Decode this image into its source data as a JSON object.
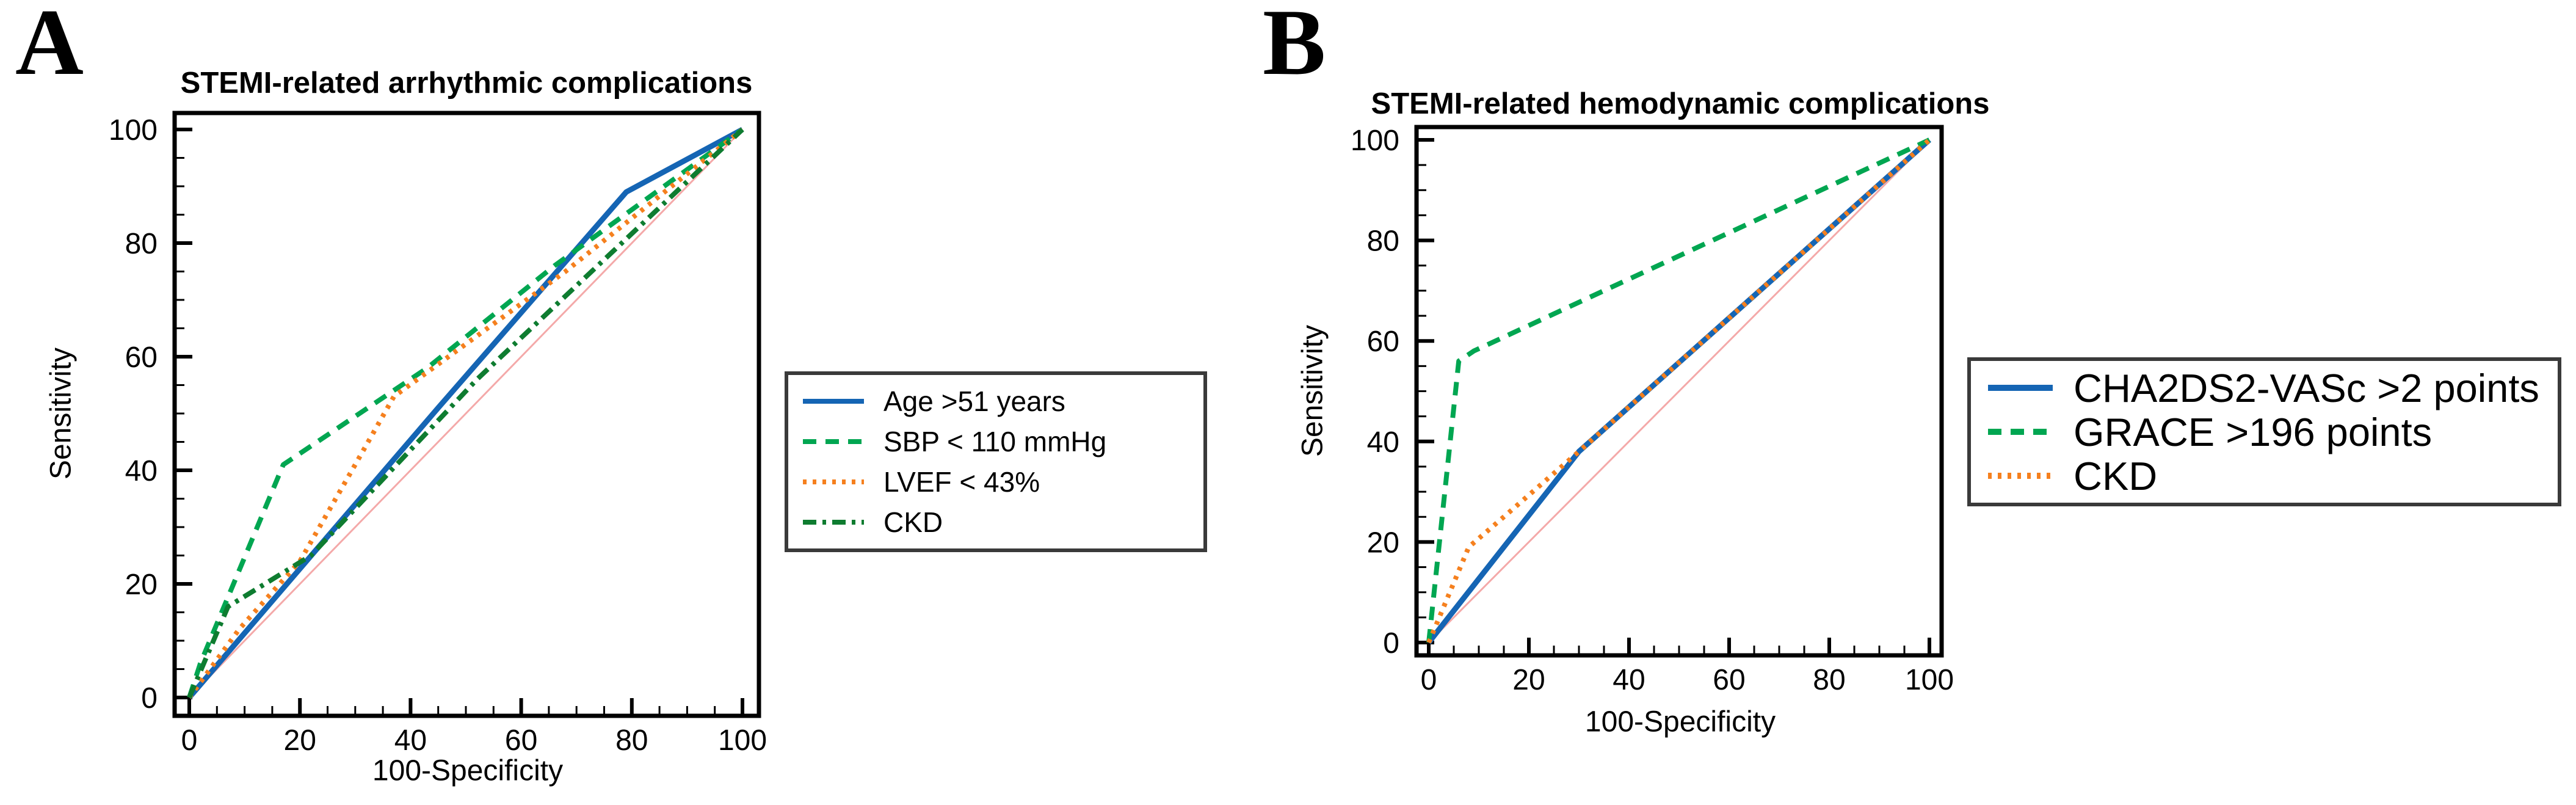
{
  "figure": {
    "panels": [
      {
        "panel_label": "A"
      },
      {
        "panel_label": "B"
      }
    ]
  },
  "chart_data": [
    {
      "type": "line",
      "panel": "A",
      "title": "STEMI-related arrhythmic complications",
      "xlabel": "100-Specificity",
      "ylabel": "Sensitivity",
      "xlim": [
        0,
        100
      ],
      "ylim": [
        0,
        100
      ],
      "x_ticks": [
        0,
        20,
        40,
        60,
        80,
        100
      ],
      "y_ticks": [
        0,
        20,
        40,
        60,
        80,
        100
      ],
      "minor_tick_step": 5,
      "grid": false,
      "legend_position": "right",
      "series": [
        {
          "name": "Age >51 years",
          "color": "#1565b4",
          "line_style": "solid",
          "points": [
            [
              0,
              0
            ],
            [
              45,
              51
            ],
            [
              79,
              89
            ],
            [
              100,
              100
            ]
          ]
        },
        {
          "name": "SBP < 110 mmHg",
          "color": "#00a651",
          "line_style": "dashed",
          "points": [
            [
              0,
              0
            ],
            [
              2,
              6
            ],
            [
              17,
              41
            ],
            [
              43,
              58
            ],
            [
              66,
              76
            ],
            [
              100,
              100
            ]
          ]
        },
        {
          "name": "LVEF < 43%",
          "color": "#f5801e",
          "line_style": "dotted",
          "points": [
            [
              0,
              0
            ],
            [
              9,
              12
            ],
            [
              20,
              24
            ],
            [
              30,
              41
            ],
            [
              37,
              53
            ],
            [
              68,
              75
            ],
            [
              100,
              100
            ]
          ]
        },
        {
          "name": "CKD",
          "color": "#0e7c30",
          "line_style": "dashdot",
          "points": [
            [
              0,
              0
            ],
            [
              7,
              16
            ],
            [
              22,
              25
            ],
            [
              52,
              56
            ],
            [
              76,
              78
            ],
            [
              100,
              100
            ]
          ]
        }
      ],
      "reference_line": {
        "name": "chance-diagonal",
        "color": "#f4a9a9",
        "points": [
          [
            0,
            0
          ],
          [
            100,
            100
          ]
        ]
      }
    },
    {
      "type": "line",
      "panel": "B",
      "title": "STEMI-related hemodynamic complications",
      "xlabel": "100-Specificity",
      "ylabel": "Sensitivity",
      "xlim": [
        0,
        100
      ],
      "ylim": [
        0,
        100
      ],
      "x_ticks": [
        0,
        20,
        40,
        60,
        80,
        100
      ],
      "y_ticks": [
        0,
        20,
        40,
        60,
        80,
        100
      ],
      "minor_tick_step": 5,
      "grid": false,
      "legend_position": "right",
      "series": [
        {
          "name": "CHA2DS2-VASc >2 points",
          "color": "#1565b4",
          "line_style": "solid",
          "points": [
            [
              0,
              0
            ],
            [
              30,
              38
            ],
            [
              100,
              100
            ]
          ]
        },
        {
          "name": "GRACE >196 points",
          "color": "#00a651",
          "line_style": "dashed",
          "points": [
            [
              0,
              0
            ],
            [
              6,
              56
            ],
            [
              9,
              58
            ],
            [
              100,
              100
            ]
          ]
        },
        {
          "name": "CKD",
          "color": "#f5801e",
          "line_style": "dotted",
          "points": [
            [
              0,
              0
            ],
            [
              8,
              19
            ],
            [
              15,
              25
            ],
            [
              30,
              38
            ],
            [
              100,
              100
            ]
          ]
        }
      ],
      "reference_line": {
        "name": "chance-diagonal",
        "color": "#f4a9a9",
        "points": [
          [
            0,
            0
          ],
          [
            100,
            100
          ]
        ]
      }
    }
  ]
}
